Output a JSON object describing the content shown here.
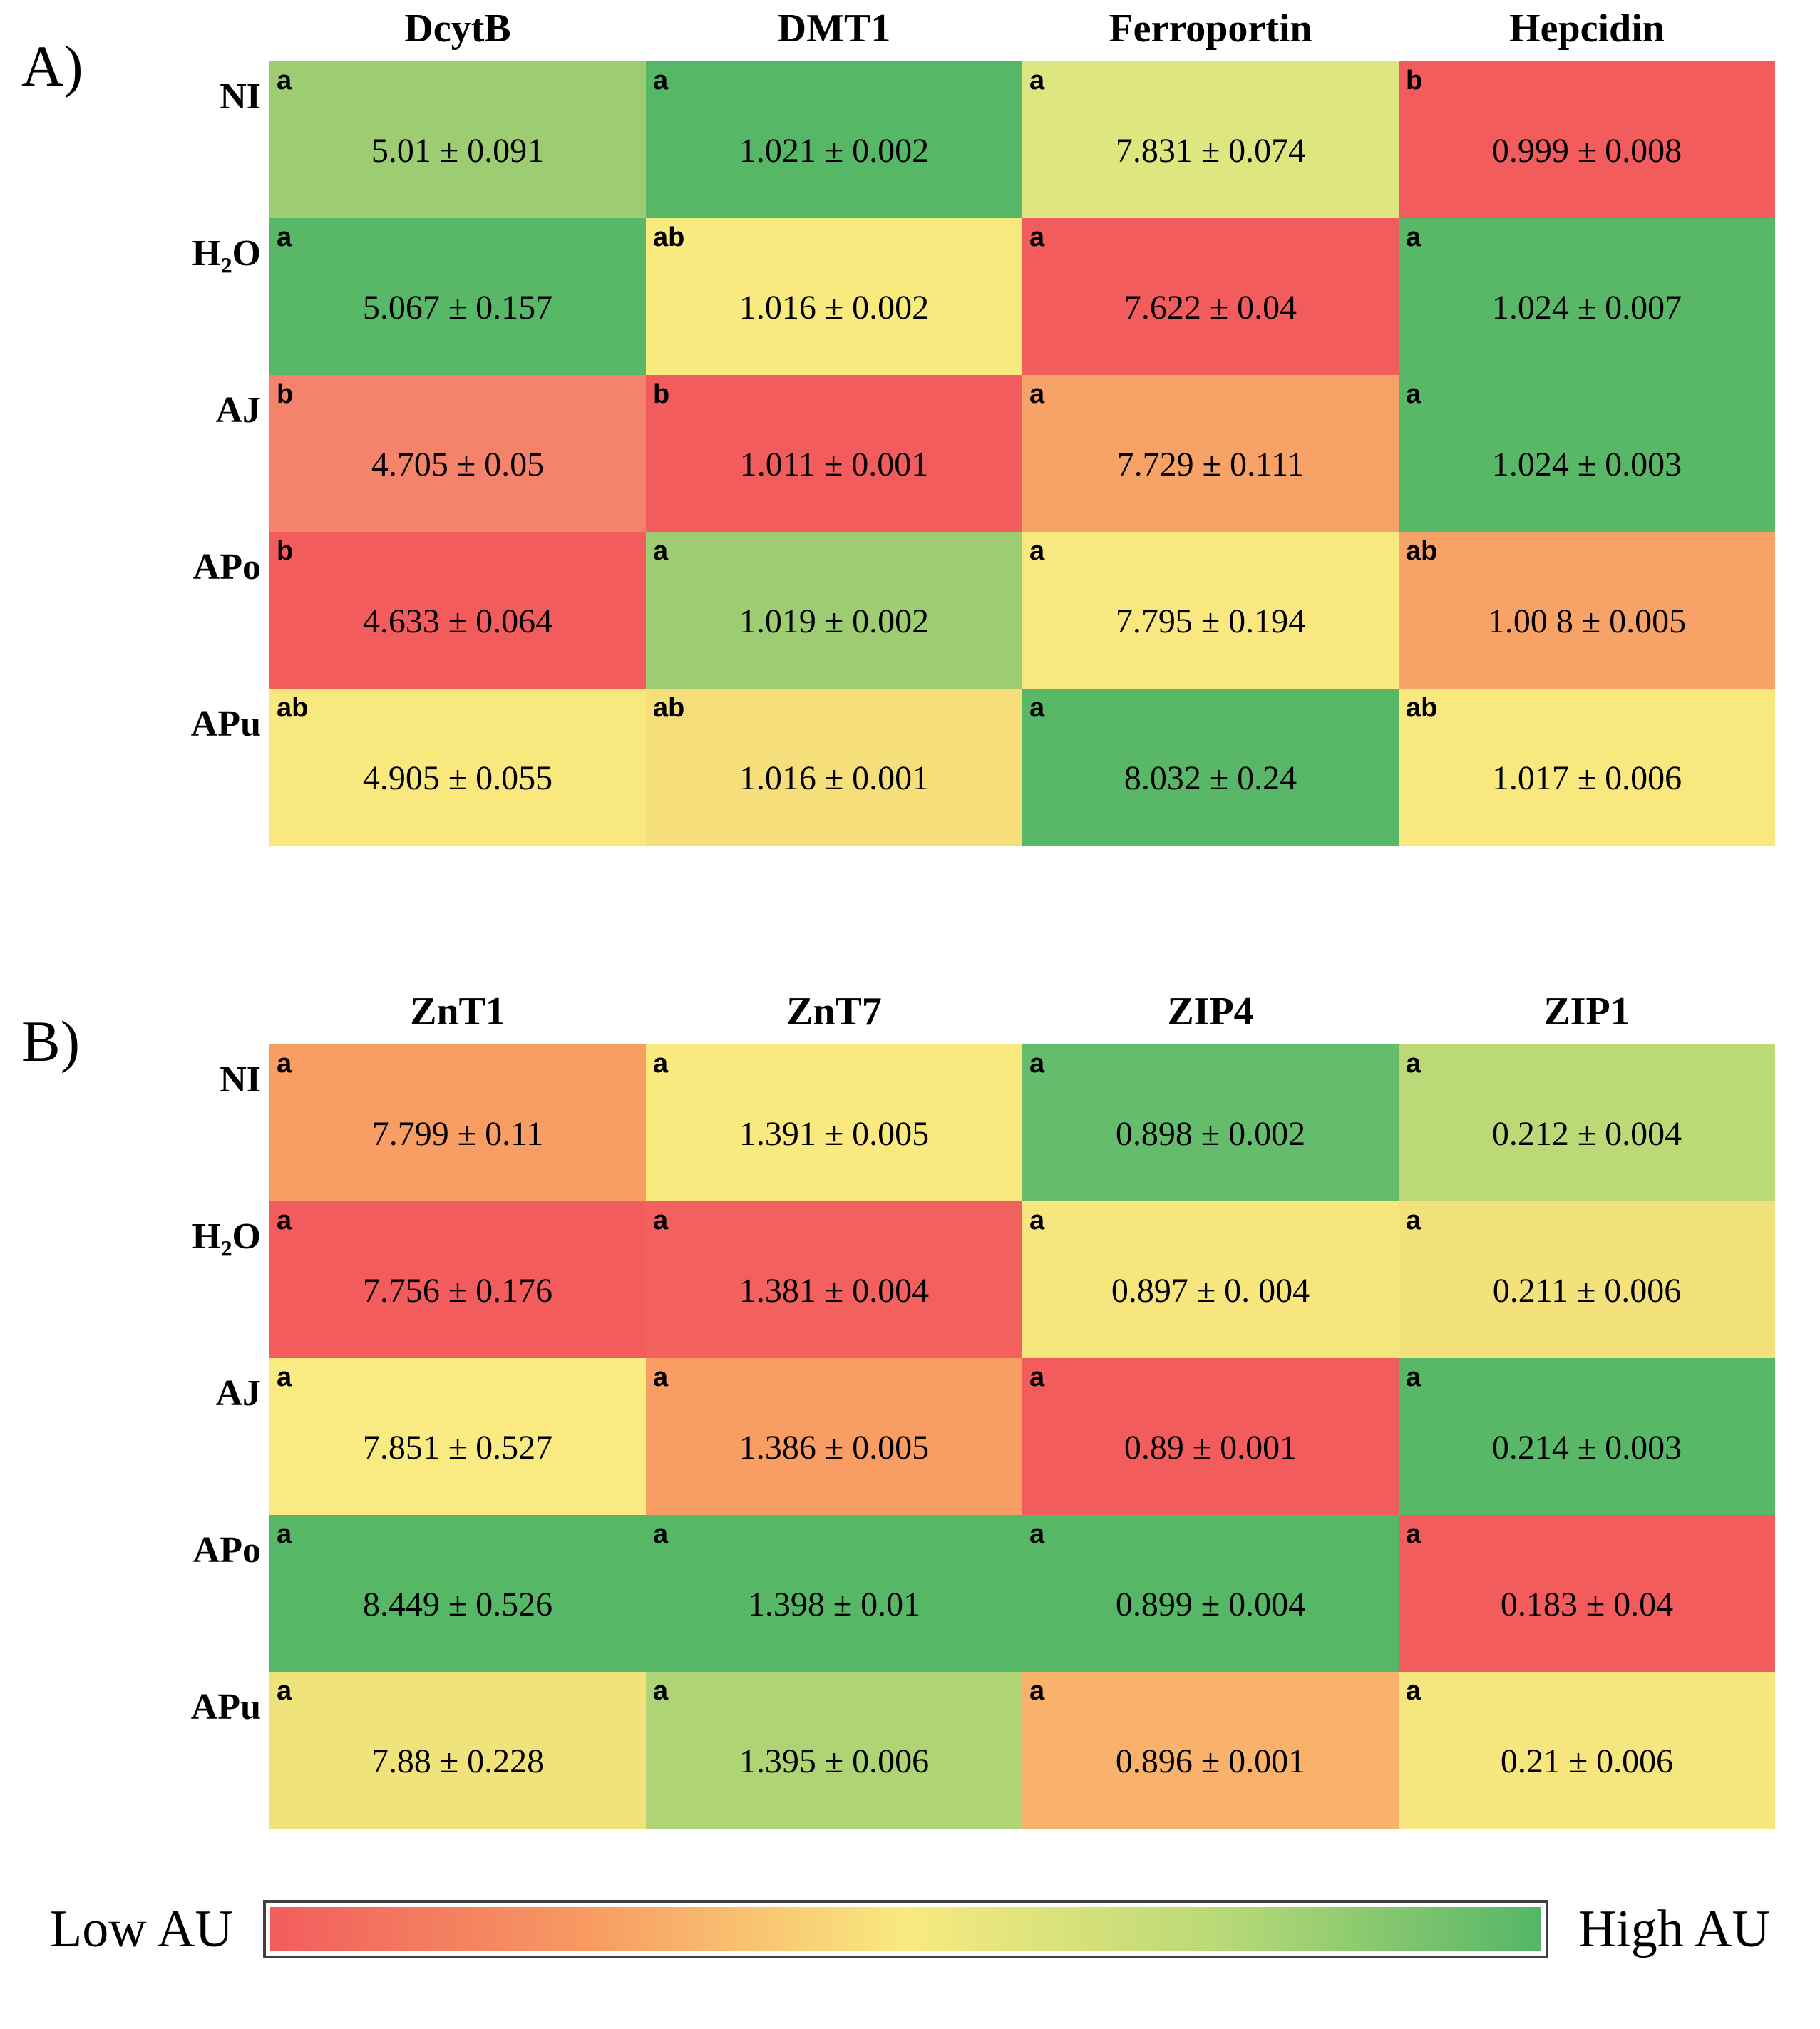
{
  "legend": {
    "low_label": "Low AU",
    "high_label": "High AU",
    "gradient": [
      "#f15d5d",
      "#f79a62",
      "#f9ea7f",
      "#b8d977",
      "#54b667"
    ]
  },
  "chart_data": [
    {
      "type": "heatmap",
      "panel_label": "A)",
      "columns": [
        "DcytB",
        "DMT1",
        "Ferroportin",
        "Hepcidin"
      ],
      "rows": [
        "NI",
        "H₂O",
        "AJ",
        "APo",
        "APu"
      ],
      "value_unit": "AU",
      "cells": [
        [
          {
            "sig": "a",
            "value": "5.01 ± 0.091",
            "color": "#9dcc73"
          },
          {
            "sig": "a",
            "value": "1.021 ± 0.002",
            "color": "#56b767"
          },
          {
            "sig": "a",
            "value": "7.831 ± 0.074",
            "color": "#dee67f"
          },
          {
            "sig": "b",
            "value": "0.999 ± 0.008",
            "color": "#f25c5c"
          }
        ],
        [
          {
            "sig": "a",
            "value": "5.067 ± 0.157",
            "color": "#58b868"
          },
          {
            "sig": "ab",
            "value": "1.016 ± 0.002",
            "color": "#f9ea80"
          },
          {
            "sig": "a",
            "value": "7.622 ± 0.04",
            "color": "#f25c5c"
          },
          {
            "sig": "a",
            "value": "1.024 ± 0.007",
            "color": "#58b868"
          }
        ],
        [
          {
            "sig": "b",
            "value": "4.705 ± 0.05",
            "color": "#f5836b"
          },
          {
            "sig": "b",
            "value": "1.011 ± 0.001",
            "color": "#f25c5c"
          },
          {
            "sig": "a",
            "value": "7.729 ± 0.111",
            "color": "#f7a266"
          },
          {
            "sig": "a",
            "value": "1.024 ± 0.003",
            "color": "#58b868"
          }
        ],
        [
          {
            "sig": "b",
            "value": "4.633 ± 0.064",
            "color": "#f25c5c"
          },
          {
            "sig": "a",
            "value": "1.019 ± 0.002",
            "color": "#9dcc73"
          },
          {
            "sig": "a",
            "value": "7.795 ± 0.194",
            "color": "#f9e77f"
          },
          {
            "sig": "ab",
            "value": "1.00 8 ± 0.005",
            "color": "#f7a266"
          }
        ],
        [
          {
            "sig": "ab",
            "value": "4.905 ± 0.055",
            "color": "#f9e87e"
          },
          {
            "sig": "ab",
            "value": "1.016 ± 0.001",
            "color": "#f6df7b"
          },
          {
            "sig": "a",
            "value": "8.032 ± 0.24",
            "color": "#58b868"
          },
          {
            "sig": "ab",
            "value": "1.017 ± 0.006",
            "color": "#f9e87e"
          }
        ]
      ]
    },
    {
      "type": "heatmap",
      "panel_label": "B)",
      "columns": [
        "ZnT1",
        "ZnT7",
        "ZIP4",
        "ZIP1"
      ],
      "rows": [
        "NI",
        "H₂O",
        "AJ",
        "APo",
        "APu"
      ],
      "value_unit": "AU",
      "cells": [
        [
          {
            "sig": "a",
            "value": "7.799 ± 0.11",
            "color": "#f89d63"
          },
          {
            "sig": "a",
            "value": "1.391 ± 0.005",
            "color": "#f9e97f"
          },
          {
            "sig": "a",
            "value": "0.898 ± 0.002",
            "color": "#64bc6c"
          },
          {
            "sig": "a",
            "value": "0.212 ± 0.004",
            "color": "#bcd977"
          }
        ],
        [
          {
            "sig": "a",
            "value": "7.756 ± 0.176",
            "color": "#f25c5c"
          },
          {
            "sig": "a",
            "value": "1.381 ± 0.004",
            "color": "#f2615e"
          },
          {
            "sig": "a",
            "value": "0.897 ± 0. 004",
            "color": "#f7e57d"
          },
          {
            "sig": "a",
            "value": "0.211 ± 0.006",
            "color": "#f3e27c"
          }
        ],
        [
          {
            "sig": "a",
            "value": "7.851 ± 0.527",
            "color": "#f9eb82"
          },
          {
            "sig": "a",
            "value": "1.386 ± 0.005",
            "color": "#f89d63"
          },
          {
            "sig": "a",
            "value": "0.89 ± 0.001",
            "color": "#f25c5c"
          },
          {
            "sig": "a",
            "value": "0.214 ± 0.003",
            "color": "#58b868"
          }
        ],
        [
          {
            "sig": "a",
            "value": "8.449 ± 0.526",
            "color": "#56b767"
          },
          {
            "sig": "a",
            "value": "1.398 ± 0.01",
            "color": "#56b767"
          },
          {
            "sig": "a",
            "value": "0.899 ± 0.004",
            "color": "#56b767"
          },
          {
            "sig": "a",
            "value": "0.183 ± 0.04",
            "color": "#f25c5c"
          }
        ],
        [
          {
            "sig": "a",
            "value": "7.88 ± 0.228",
            "color": "#f0e37c"
          },
          {
            "sig": "a",
            "value": "1.395 ± 0.006",
            "color": "#afd475"
          },
          {
            "sig": "a",
            "value": "0.896 ± 0.001",
            "color": "#f8b26c"
          },
          {
            "sig": "a",
            "value": "0.21 ± 0.006",
            "color": "#f6e67e"
          }
        ]
      ]
    }
  ]
}
